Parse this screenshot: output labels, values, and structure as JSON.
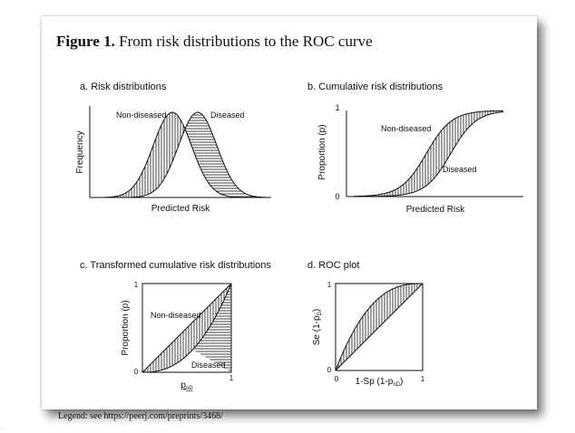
{
  "figure": {
    "title_bold": "Figure 1.",
    "title_rest": " From risk distributions to the ROC curve"
  },
  "legend_text": "Legend: see https://peerj.com/preprints/3468/",
  "corner_mark": "...",
  "panels": {
    "a": {
      "label": "a.  Risk distributions",
      "ylabel": "Frequency",
      "xlabel": "Predicted Risk",
      "series_left": "Non-diseased",
      "series_right": "Diseased"
    },
    "b": {
      "label": "b.  Cumulative risk distributions",
      "ylabel": "Proportion (p)",
      "xlabel": "Predicted Risk",
      "series_top": "Non-diseased",
      "series_bottom": "Diseased",
      "y_ticks": [
        "1",
        "0"
      ]
    },
    "c": {
      "label": "c.  Transformed cumulative risk distributions",
      "ylabel": "Proportion (p)",
      "xlabel_main": "p",
      "xlabel_sub": "nD",
      "series_top": "Non-diseased",
      "series_bottom": "Diseased",
      "y_ticks": [
        "1",
        "0"
      ],
      "x_ticks": [
        "0",
        "1"
      ]
    },
    "d": {
      "label": "d.  ROC plot",
      "ylabel_main": "Se (1-p",
      "ylabel_sub": "D",
      "ylabel_end": ")",
      "xlabel_main": "1-Sp (1-p",
      "xlabel_sub": "nD",
      "xlabel_end": ")",
      "y_ticks": [
        "1",
        "0"
      ],
      "x_ticks": [
        "0",
        "1"
      ]
    }
  },
  "colors": {
    "ink": "#111111",
    "shadow": "#333333"
  }
}
